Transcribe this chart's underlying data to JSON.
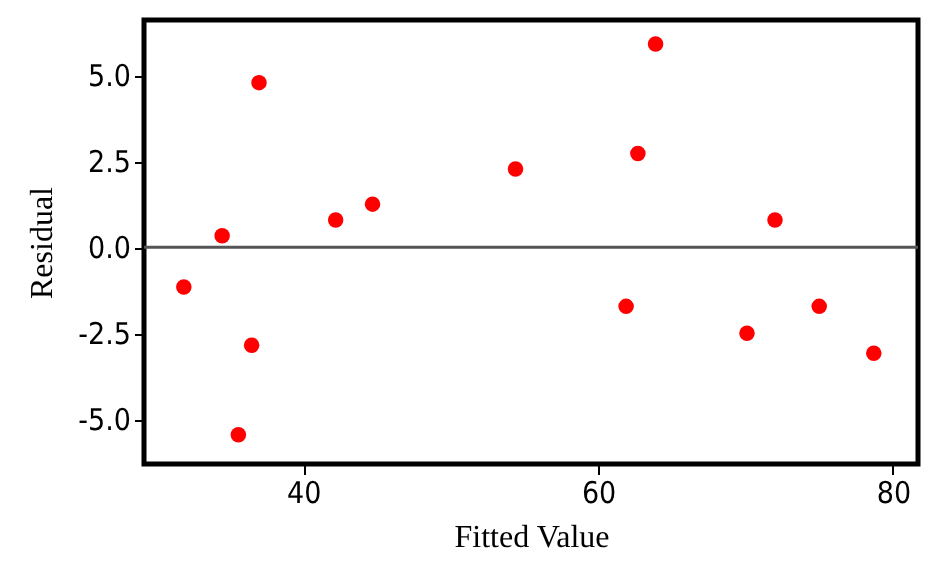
{
  "chart_data": {
    "type": "scatter",
    "xlabel": "Fitted Value",
    "ylabel": "Residual",
    "x": [
      31.9,
      34.5,
      37.0,
      36.5,
      35.6,
      42.2,
      44.7,
      54.4,
      63.9,
      62.7,
      72.0,
      61.9,
      70.1,
      75.0,
      78.7
    ],
    "series": [
      {
        "color": "#ff0000",
        "values": [
          -1.16,
          0.33,
          4.78,
          -2.85,
          -5.45,
          0.79,
          1.25,
          2.27,
          5.9,
          2.72,
          0.79,
          -1.72,
          -2.5,
          -1.72,
          -3.08
        ]
      }
    ],
    "xlim": [
      29.2,
      81.7
    ],
    "ylim": [
      -6.3,
      6.6
    ],
    "xticks": [
      40,
      60,
      80
    ],
    "yticks": [
      {
        "value": -5,
        "label": "-5.0"
      },
      {
        "value": -2.5,
        "label": "-2.5"
      },
      {
        "value": 0,
        "label": "0.0"
      },
      {
        "value": 2.5,
        "label": "2.5"
      },
      {
        "value": 5,
        "label": "5.0"
      }
    ],
    "ref_lines": [
      {
        "axis": "y",
        "value": 0,
        "color": "#555555"
      }
    ],
    "marker": "circle",
    "grid": false
  }
}
